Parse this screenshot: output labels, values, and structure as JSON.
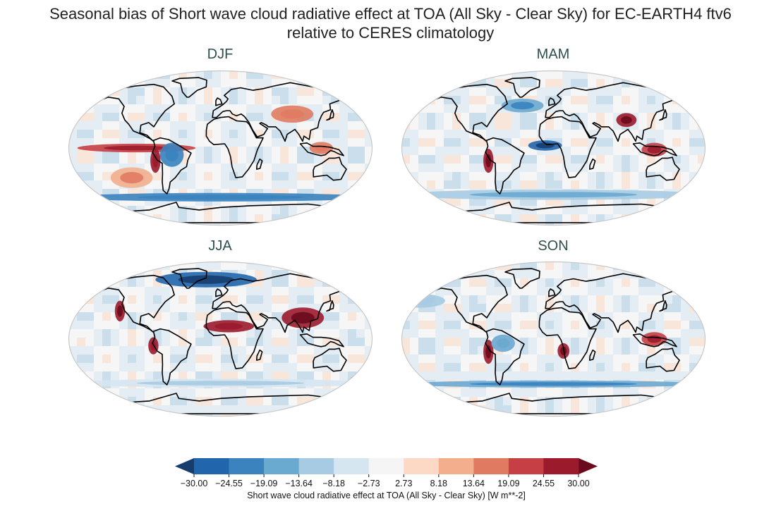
{
  "figure_title_line1": "Seasonal bias of Short wave cloud radiative effect at TOA (All Sky - Clear Sky) for EC-EARTH4 ftv6",
  "figure_title_line2": "relative to CERES climatology",
  "chart_data": {
    "type": "heatmap",
    "projection": "Robinson (global map panels)",
    "panels": [
      {
        "title": "DJF",
        "features": [
          {
            "region": "equatorial east Pacific band",
            "bias": 22
          },
          {
            "region": "Peru/Chile coast",
            "bias": 25
          },
          {
            "region": "tropical South America",
            "bias": -20
          },
          {
            "region": "south-east Pacific",
            "bias": 12
          },
          {
            "region": "Southern Ocean",
            "bias": -20
          },
          {
            "region": "Asia interior",
            "bias": 15
          },
          {
            "region": "Maritime Continent",
            "bias": 14
          }
        ]
      },
      {
        "title": "MAM",
        "features": [
          {
            "region": "equatorial Atlantic / west Africa",
            "bias": -28
          },
          {
            "region": "Peru/Chile coast",
            "bias": 28
          },
          {
            "region": "Tibet / central Asia",
            "bias": 28
          },
          {
            "region": "Maritime Continent",
            "bias": 24
          },
          {
            "region": "North Atlantic",
            "bias": -18
          },
          {
            "region": "Southern Ocean",
            "bias": -12
          }
        ]
      },
      {
        "title": "JJA",
        "features": [
          {
            "region": "California coast",
            "bias": 28
          },
          {
            "region": "Sahel / North Africa",
            "bias": 26
          },
          {
            "region": "South & East Asia",
            "bias": 28
          },
          {
            "region": "Arctic / North Atlantic",
            "bias": -28
          },
          {
            "region": "Peru coast",
            "bias": 25
          },
          {
            "region": "Southern Ocean",
            "bias": -8
          }
        ]
      },
      {
        "title": "SON",
        "features": [
          {
            "region": "Peru/Chile coast",
            "bias": 28
          },
          {
            "region": "Namibia / Angola coast",
            "bias": 28
          },
          {
            "region": "Maritime Continent",
            "bias": 24
          },
          {
            "region": "Amazon",
            "bias": -15
          },
          {
            "region": "Southern Ocean band",
            "bias": -18
          },
          {
            "region": "North Pacific",
            "bias": -10
          }
        ]
      }
    ],
    "colorbar": {
      "ticks": [
        "−30.00",
        "−24.55",
        "−19.09",
        "−13.64",
        "−8.18",
        "−2.73",
        "2.73",
        "8.18",
        "13.64",
        "19.09",
        "24.55",
        "30.00"
      ],
      "colors": [
        "#2166ac",
        "#3a83bf",
        "#6aa9d0",
        "#a6cbe3",
        "#d6e6f1",
        "#f5f5f5",
        "#fbd9c5",
        "#f2ae8d",
        "#e07b62",
        "#c53f45",
        "#9b1a2c"
      ],
      "under_color": "#163d6e",
      "over_color": "#6a0b1d",
      "label": "Short wave cloud radiative effect at TOA (All Sky - Clear Sky) [W m**-2]",
      "vmin": -30,
      "vmax": 30,
      "extend": "both"
    }
  }
}
